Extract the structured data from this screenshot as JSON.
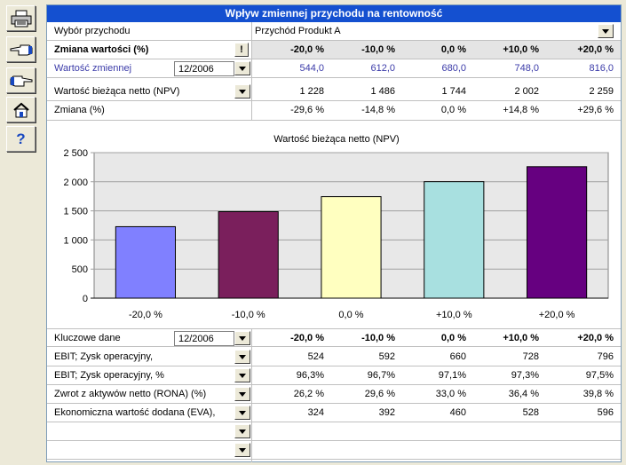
{
  "title": "Wpływ zmiennej przychodu na rentowność",
  "toolbar": {
    "print": "printer-icon",
    "back": "hand-left-icon",
    "forward": "hand-right-icon",
    "home": "home-icon",
    "help": "?"
  },
  "top": {
    "choice_label": "Wybór przychodu",
    "choice_value": "Przychód Produkt A",
    "change_label": "Zmiana wartości (%)",
    "alert_btn": "!",
    "change_headers": [
      "-20,0 %",
      "-10,0 %",
      "0,0 %",
      "+10,0 %",
      "+20,0 %"
    ],
    "var_label": "Wartość zmiennej",
    "var_date": "12/2006",
    "var_values": [
      "544,0",
      "612,0",
      "680,0",
      "748,0",
      "816,0"
    ],
    "npv_label": "Wartość bieżąca netto (NPV)",
    "npv_values": [
      "1 228",
      "1 486",
      "1 744",
      "2 002",
      "2 259"
    ],
    "zm_label": "Zmiana (%)",
    "zm_values": [
      "-29,6 %",
      "-14,8 %",
      "0,0 %",
      "+14,8 %",
      "+29,6 %"
    ]
  },
  "chart_data": {
    "type": "bar",
    "title": "Wartość bieżąca netto (NPV)",
    "categories": [
      "-20,0 %",
      "-10,0 %",
      "0,0 %",
      "+10,0 %",
      "+20,0 %"
    ],
    "values": [
      1228,
      1486,
      1744,
      2002,
      2259
    ],
    "colors": [
      "#8080ff",
      "#7a1f5c",
      "#ffffc0",
      "#a8e0e0",
      "#660080"
    ],
    "ylim": [
      0,
      2500
    ],
    "yticks": [
      "0",
      "500",
      "1 000",
      "1 500",
      "2 000",
      "2 500"
    ],
    "xlabel": "",
    "ylabel": ""
  },
  "bottom": {
    "key_label": "Kluczowe dane",
    "key_date": "12/2006",
    "headers": [
      "-20,0 %",
      "-10,0 %",
      "0,0 %",
      "+10,0 %",
      "+20,0 %"
    ],
    "rows": [
      {
        "label": "EBIT; Zysk operacyjny,",
        "values": [
          "524",
          "592",
          "660",
          "728",
          "796"
        ]
      },
      {
        "label": "EBIT; Zysk operacyjny, %",
        "values": [
          "96,3%",
          "96,7%",
          "97,1%",
          "97,3%",
          "97,5%"
        ]
      },
      {
        "label": "Zwrot z aktywów netto (RONA) (%)",
        "values": [
          "26,2 %",
          "29,6 %",
          "33,0 %",
          "36,4 %",
          "39,8 %"
        ]
      },
      {
        "label": "Ekonomiczna wartość dodana (EVA),",
        "values": [
          "324",
          "392",
          "460",
          "528",
          "596"
        ]
      },
      {
        "label": "",
        "values": [
          "",
          "",
          "",
          "",
          ""
        ]
      },
      {
        "label": "",
        "values": [
          "",
          "",
          "",
          "",
          ""
        ]
      }
    ]
  }
}
